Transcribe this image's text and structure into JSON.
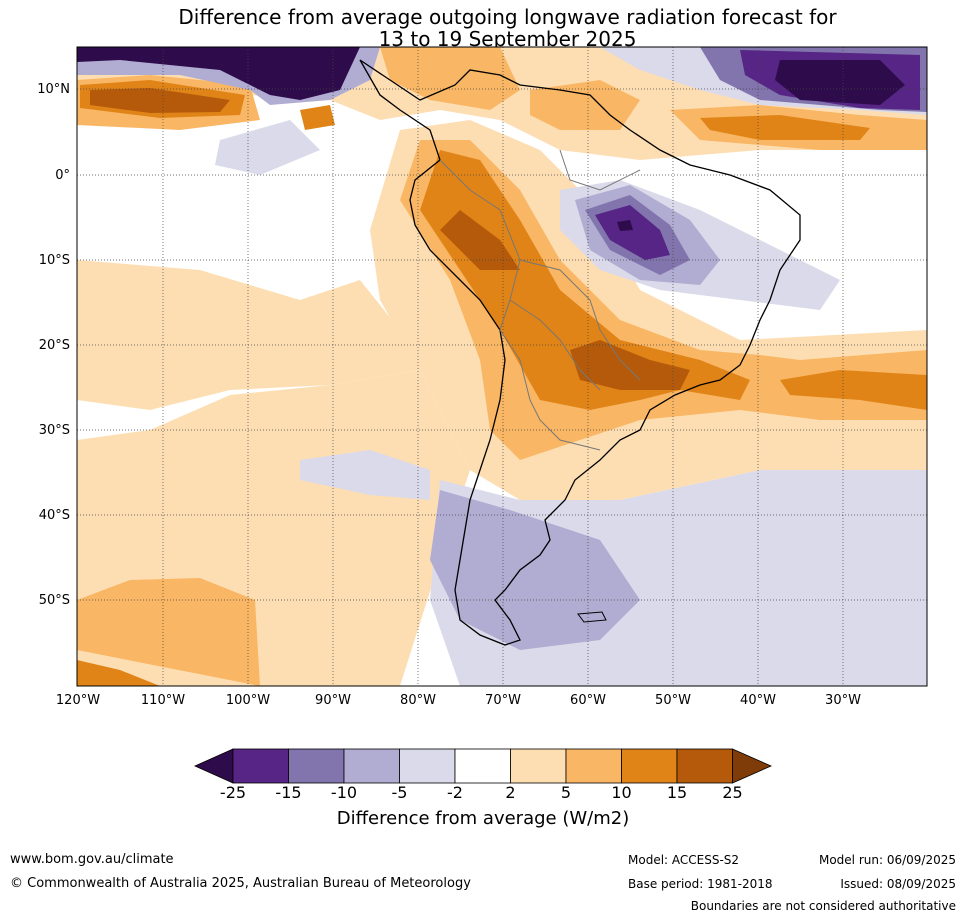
{
  "title": {
    "line1": "Difference from average outgoing longwave radiation forecast for",
    "line2": "13 to 19 September 2025"
  },
  "map": {
    "lat_labels": [
      "10°N",
      "0°",
      "10°S",
      "20°S",
      "30°S",
      "40°S",
      "50°S"
    ],
    "lon_labels": [
      "120°W",
      "110°W",
      "100°W",
      "90°W",
      "80°W",
      "70°W",
      "60°W",
      "50°W",
      "40°W",
      "30°W"
    ],
    "colors": {
      "below_-25": "#2e0b4b",
      "-25_-15": "#562585",
      "-15_-10": "#8275ad",
      "-10_-5": "#b1acd2",
      "-5_-2": "#dadaea",
      "-2_2": "#ffffff",
      "2_5": "#fddeb3",
      "5_10": "#f9b664",
      "10_15": "#e08417",
      "15_25": "#b55a0a",
      "above_25": "#7f3b08"
    }
  },
  "colorbar": {
    "ticks": [
      "-25",
      "-15",
      "-10",
      "-5",
      "-2",
      "2",
      "5",
      "10",
      "15",
      "25"
    ],
    "label": "Difference from average (W/m2)"
  },
  "footer": {
    "url": "www.bom.gov.au/climate",
    "copyright": "© Commonwealth of Australia 2025, Australian Bureau of Meteorology",
    "model": "Model: ACCESS-S2",
    "base_period": "Base period: 1981-2018",
    "model_run": "Model run: 06/09/2025",
    "issued": "Issued: 08/09/2025",
    "disclaimer": "Boundaries are not considered authoritative"
  }
}
